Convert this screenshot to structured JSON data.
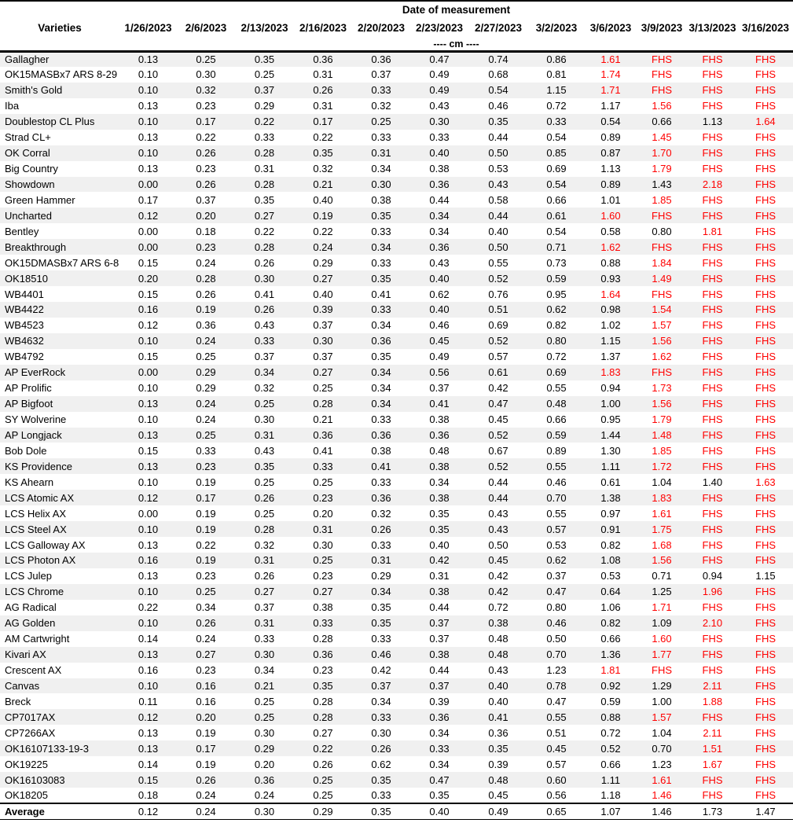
{
  "colors": {
    "red_flag": "#FF0000",
    "row_stripe": "#F0F0F0"
  },
  "table": {
    "group_header": "Date of measurement",
    "varieties_label": "Varieties",
    "unit_label": "---- cm ----",
    "fhs_label": "FHS",
    "columns": [
      "1/26/2023",
      "2/6/2023",
      "2/13/2023",
      "2/16/2023",
      "2/20/2023",
      "2/23/2023",
      "2/27/2023",
      "3/2/2023",
      "3/6/2023",
      "3/9/2023",
      "3/13/2023",
      "3/16/2023"
    ],
    "rows": [
      {
        "name": "Gallagher",
        "values": [
          "0.13",
          "0.25",
          "0.35",
          "0.36",
          "0.36",
          "0.47",
          "0.74",
          "0.86",
          "1.61",
          "FHS",
          "FHS",
          "FHS"
        ],
        "red_from": 8
      },
      {
        "name": "OK15MASBx7 ARS 8-29",
        "values": [
          "0.10",
          "0.30",
          "0.25",
          "0.31",
          "0.37",
          "0.49",
          "0.68",
          "0.81",
          "1.74",
          "FHS",
          "FHS",
          "FHS"
        ],
        "red_from": 8
      },
      {
        "name": "Smith's Gold",
        "values": [
          "0.10",
          "0.32",
          "0.37",
          "0.26",
          "0.33",
          "0.49",
          "0.54",
          "1.15",
          "1.71",
          "FHS",
          "FHS",
          "FHS"
        ],
        "red_from": 8
      },
      {
        "name": "Iba",
        "values": [
          "0.13",
          "0.23",
          "0.29",
          "0.31",
          "0.32",
          "0.43",
          "0.46",
          "0.72",
          "1.17",
          "1.56",
          "FHS",
          "FHS"
        ],
        "red_from": 9
      },
      {
        "name": "Doublestop CL Plus",
        "values": [
          "0.10",
          "0.17",
          "0.22",
          "0.17",
          "0.25",
          "0.30",
          "0.35",
          "0.33",
          "0.54",
          "0.66",
          "1.13",
          "1.64"
        ],
        "red_from": 11
      },
      {
        "name": "Strad CL+",
        "values": [
          "0.13",
          "0.22",
          "0.33",
          "0.22",
          "0.33",
          "0.33",
          "0.44",
          "0.54",
          "0.89",
          "1.45",
          "FHS",
          "FHS"
        ],
        "red_from": 9
      },
      {
        "name": "OK Corral",
        "values": [
          "0.10",
          "0.26",
          "0.28",
          "0.35",
          "0.31",
          "0.40",
          "0.50",
          "0.85",
          "0.87",
          "1.70",
          "FHS",
          "FHS"
        ],
        "red_from": 9
      },
      {
        "name": "Big Country",
        "values": [
          "0.13",
          "0.23",
          "0.31",
          "0.32",
          "0.34",
          "0.38",
          "0.53",
          "0.69",
          "1.13",
          "1.79",
          "FHS",
          "FHS"
        ],
        "red_from": 9
      },
      {
        "name": "Showdown",
        "values": [
          "0.00",
          "0.26",
          "0.28",
          "0.21",
          "0.30",
          "0.36",
          "0.43",
          "0.54",
          "0.89",
          "1.43",
          "2.18",
          "FHS"
        ],
        "red_from": 10
      },
      {
        "name": "Green Hammer",
        "values": [
          "0.17",
          "0.37",
          "0.35",
          "0.40",
          "0.38",
          "0.44",
          "0.58",
          "0.66",
          "1.01",
          "1.85",
          "FHS",
          "FHS"
        ],
        "red_from": 9
      },
      {
        "name": "Uncharted",
        "values": [
          "0.12",
          "0.20",
          "0.27",
          "0.19",
          "0.35",
          "0.34",
          "0.44",
          "0.61",
          "1.60",
          "FHS",
          "FHS",
          "FHS"
        ],
        "red_from": 8
      },
      {
        "name": "Bentley",
        "values": [
          "0.00",
          "0.18",
          "0.22",
          "0.22",
          "0.33",
          "0.34",
          "0.40",
          "0.54",
          "0.58",
          "0.80",
          "1.81",
          "FHS"
        ],
        "red_from": 10
      },
      {
        "name": "Breakthrough",
        "values": [
          "0.00",
          "0.23",
          "0.28",
          "0.24",
          "0.34",
          "0.36",
          "0.50",
          "0.71",
          "1.62",
          "FHS",
          "FHS",
          "FHS"
        ],
        "red_from": 8
      },
      {
        "name": "OK15DMASBx7 ARS 6-8",
        "values": [
          "0.15",
          "0.24",
          "0.26",
          "0.29",
          "0.33",
          "0.43",
          "0.55",
          "0.73",
          "0.88",
          "1.84",
          "FHS",
          "FHS"
        ],
        "red_from": 9
      },
      {
        "name": "OK18510",
        "values": [
          "0.20",
          "0.28",
          "0.30",
          "0.27",
          "0.35",
          "0.40",
          "0.52",
          "0.59",
          "0.93",
          "1.49",
          "FHS",
          "FHS"
        ],
        "red_from": 9
      },
      {
        "name": "WB4401",
        "values": [
          "0.15",
          "0.26",
          "0.41",
          "0.40",
          "0.41",
          "0.62",
          "0.76",
          "0.95",
          "1.64",
          "FHS",
          "FHS",
          "FHS"
        ],
        "red_from": 8
      },
      {
        "name": "WB4422",
        "values": [
          "0.16",
          "0.19",
          "0.26",
          "0.39",
          "0.33",
          "0.40",
          "0.51",
          "0.62",
          "0.98",
          "1.54",
          "FHS",
          "FHS"
        ],
        "red_from": 9
      },
      {
        "name": "WB4523",
        "values": [
          "0.12",
          "0.36",
          "0.43",
          "0.37",
          "0.34",
          "0.46",
          "0.69",
          "0.82",
          "1.02",
          "1.57",
          "FHS",
          "FHS"
        ],
        "red_from": 9
      },
      {
        "name": "WB4632",
        "values": [
          "0.10",
          "0.24",
          "0.33",
          "0.30",
          "0.36",
          "0.45",
          "0.52",
          "0.80",
          "1.15",
          "1.56",
          "FHS",
          "FHS"
        ],
        "red_from": 9
      },
      {
        "name": "WB4792",
        "values": [
          "0.15",
          "0.25",
          "0.37",
          "0.37",
          "0.35",
          "0.49",
          "0.57",
          "0.72",
          "1.37",
          "1.62",
          "FHS",
          "FHS"
        ],
        "red_from": 9
      },
      {
        "name": "AP EverRock",
        "values": [
          "0.00",
          "0.29",
          "0.34",
          "0.27",
          "0.34",
          "0.56",
          "0.61",
          "0.69",
          "1.83",
          "FHS",
          "FHS",
          "FHS"
        ],
        "red_from": 8
      },
      {
        "name": "AP Prolific",
        "values": [
          "0.10",
          "0.29",
          "0.32",
          "0.25",
          "0.34",
          "0.37",
          "0.42",
          "0.55",
          "0.94",
          "1.73",
          "FHS",
          "FHS"
        ],
        "red_from": 9
      },
      {
        "name": "AP Bigfoot",
        "values": [
          "0.13",
          "0.24",
          "0.25",
          "0.28",
          "0.34",
          "0.41",
          "0.47",
          "0.48",
          "1.00",
          "1.56",
          "FHS",
          "FHS"
        ],
        "red_from": 9
      },
      {
        "name": "SY Wolverine",
        "values": [
          "0.10",
          "0.24",
          "0.30",
          "0.21",
          "0.33",
          "0.38",
          "0.45",
          "0.66",
          "0.95",
          "1.79",
          "FHS",
          "FHS"
        ],
        "red_from": 9
      },
      {
        "name": "AP Longjack",
        "values": [
          "0.13",
          "0.25",
          "0.31",
          "0.36",
          "0.36",
          "0.36",
          "0.52",
          "0.59",
          "1.44",
          "1.48",
          "FHS",
          "FHS"
        ],
        "red_from": 9
      },
      {
        "name": "Bob Dole",
        "values": [
          "0.15",
          "0.33",
          "0.43",
          "0.41",
          "0.38",
          "0.48",
          "0.67",
          "0.89",
          "1.30",
          "1.85",
          "FHS",
          "FHS"
        ],
        "red_from": 9
      },
      {
        "name": "KS Providence",
        "values": [
          "0.13",
          "0.23",
          "0.35",
          "0.33",
          "0.41",
          "0.38",
          "0.52",
          "0.55",
          "1.11",
          "1.72",
          "FHS",
          "FHS"
        ],
        "red_from": 9
      },
      {
        "name": "KS Ahearn",
        "values": [
          "0.10",
          "0.19",
          "0.25",
          "0.25",
          "0.33",
          "0.34",
          "0.44",
          "0.46",
          "0.61",
          "1.04",
          "1.40",
          "1.63"
        ],
        "red_from": 11
      },
      {
        "name": "LCS Atomic AX",
        "values": [
          "0.12",
          "0.17",
          "0.26",
          "0.23",
          "0.36",
          "0.38",
          "0.44",
          "0.70",
          "1.38",
          "1.83",
          "FHS",
          "FHS"
        ],
        "red_from": 9
      },
      {
        "name": "LCS Helix AX",
        "values": [
          "0.00",
          "0.19",
          "0.25",
          "0.20",
          "0.32",
          "0.35",
          "0.43",
          "0.55",
          "0.97",
          "1.61",
          "FHS",
          "FHS"
        ],
        "red_from": 9
      },
      {
        "name": "LCS Steel AX",
        "values": [
          "0.10",
          "0.19",
          "0.28",
          "0.31",
          "0.26",
          "0.35",
          "0.43",
          "0.57",
          "0.91",
          "1.75",
          "FHS",
          "FHS"
        ],
        "red_from": 9
      },
      {
        "name": "LCS Galloway AX",
        "values": [
          "0.13",
          "0.22",
          "0.32",
          "0.30",
          "0.33",
          "0.40",
          "0.50",
          "0.53",
          "0.82",
          "1.68",
          "FHS",
          "FHS"
        ],
        "red_from": 9
      },
      {
        "name": "LCS Photon AX",
        "values": [
          "0.16",
          "0.19",
          "0.31",
          "0.25",
          "0.31",
          "0.42",
          "0.45",
          "0.62",
          "1.08",
          "1.56",
          "FHS",
          "FHS"
        ],
        "red_from": 9
      },
      {
        "name": "LCS Julep",
        "values": [
          "0.13",
          "0.23",
          "0.26",
          "0.23",
          "0.29",
          "0.31",
          "0.42",
          "0.37",
          "0.53",
          "0.71",
          "0.94",
          "1.15"
        ],
        "red_from": null
      },
      {
        "name": "LCS Chrome",
        "values": [
          "0.10",
          "0.25",
          "0.27",
          "0.27",
          "0.34",
          "0.38",
          "0.42",
          "0.47",
          "0.64",
          "1.25",
          "1.96",
          "FHS"
        ],
        "red_from": 10
      },
      {
        "name": "AG Radical",
        "values": [
          "0.22",
          "0.34",
          "0.37",
          "0.38",
          "0.35",
          "0.44",
          "0.72",
          "0.80",
          "1.06",
          "1.71",
          "FHS",
          "FHS"
        ],
        "red_from": 9
      },
      {
        "name": "AG Golden",
        "values": [
          "0.10",
          "0.26",
          "0.31",
          "0.33",
          "0.35",
          "0.37",
          "0.38",
          "0.46",
          "0.82",
          "1.09",
          "2.10",
          "FHS"
        ],
        "red_from": 10
      },
      {
        "name": "AM Cartwright",
        "values": [
          "0.14",
          "0.24",
          "0.33",
          "0.28",
          "0.33",
          "0.37",
          "0.48",
          "0.50",
          "0.66",
          "1.60",
          "FHS",
          "FHS"
        ],
        "red_from": 9
      },
      {
        "name": "Kivari AX",
        "values": [
          "0.13",
          "0.27",
          "0.30",
          "0.36",
          "0.46",
          "0.38",
          "0.48",
          "0.70",
          "1.36",
          "1.77",
          "FHS",
          "FHS"
        ],
        "red_from": 9
      },
      {
        "name": "Crescent AX",
        "values": [
          "0.16",
          "0.23",
          "0.34",
          "0.23",
          "0.42",
          "0.44",
          "0.43",
          "1.23",
          "1.81",
          "FHS",
          "FHS",
          "FHS"
        ],
        "red_from": 8
      },
      {
        "name": "Canvas",
        "values": [
          "0.10",
          "0.16",
          "0.21",
          "0.35",
          "0.37",
          "0.37",
          "0.40",
          "0.78",
          "0.92",
          "1.29",
          "2.11",
          "FHS"
        ],
        "red_from": 10
      },
      {
        "name": "Breck",
        "values": [
          "0.11",
          "0.16",
          "0.25",
          "0.28",
          "0.34",
          "0.39",
          "0.40",
          "0.47",
          "0.59",
          "1.00",
          "1.88",
          "FHS"
        ],
        "red_from": 10
      },
      {
        "name": "CP7017AX",
        "values": [
          "0.12",
          "0.20",
          "0.25",
          "0.28",
          "0.33",
          "0.36",
          "0.41",
          "0.55",
          "0.88",
          "1.57",
          "FHS",
          "FHS"
        ],
        "red_from": 9
      },
      {
        "name": "CP7266AX",
        "values": [
          "0.13",
          "0.19",
          "0.30",
          "0.27",
          "0.30",
          "0.34",
          "0.36",
          "0.51",
          "0.72",
          "1.04",
          "2.11",
          "FHS"
        ],
        "red_from": 10
      },
      {
        "name": "OK16107133-19-3",
        "values": [
          "0.13",
          "0.17",
          "0.29",
          "0.22",
          "0.26",
          "0.33",
          "0.35",
          "0.45",
          "0.52",
          "0.70",
          "1.51",
          "FHS"
        ],
        "red_from": 10
      },
      {
        "name": "OK19225",
        "values": [
          "0.14",
          "0.19",
          "0.20",
          "0.26",
          "0.62",
          "0.34",
          "0.39",
          "0.57",
          "0.66",
          "1.23",
          "1.67",
          "FHS"
        ],
        "red_from": 10
      },
      {
        "name": "OK16103083",
        "values": [
          "0.15",
          "0.26",
          "0.36",
          "0.25",
          "0.35",
          "0.47",
          "0.48",
          "0.60",
          "1.11",
          "1.61",
          "FHS",
          "FHS"
        ],
        "red_from": 9
      },
      {
        "name": "OK18205",
        "values": [
          "0.18",
          "0.24",
          "0.24",
          "0.25",
          "0.33",
          "0.35",
          "0.45",
          "0.56",
          "1.18",
          "1.46",
          "FHS",
          "FHS"
        ],
        "red_from": 9
      }
    ],
    "average": {
      "name": "Average",
      "values": [
        "0.12",
        "0.24",
        "0.30",
        "0.29",
        "0.35",
        "0.40",
        "0.49",
        "0.65",
        "1.07",
        "1.46",
        "1.73",
        "1.47"
      ]
    }
  }
}
